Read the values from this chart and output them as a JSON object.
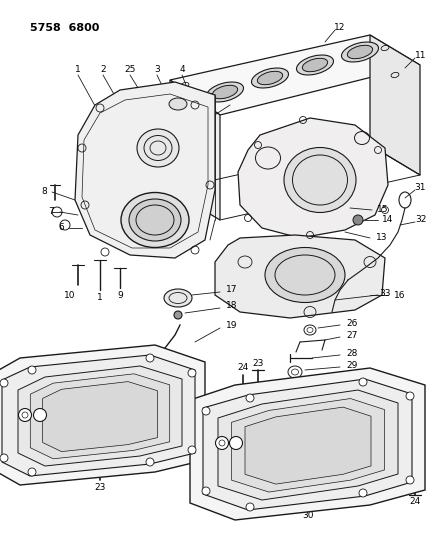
{
  "title": "5758  6800",
  "bg_color": "#ffffff",
  "line_color": "#1a1a1a",
  "figsize": [
    4.28,
    5.33
  ],
  "dpi": 100
}
